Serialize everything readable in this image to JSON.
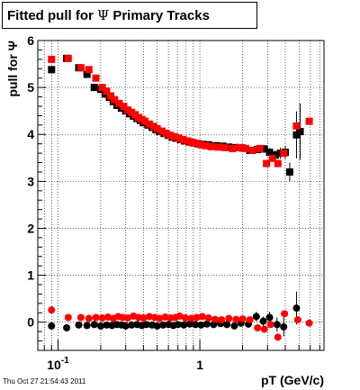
{
  "title": {
    "prefix": "Fitted pull for",
    "symbol": "Ψ",
    "suffix": "Primary Tracks"
  },
  "timestamp": "Thu Oct 27 21:54:43 2011",
  "chart_data": {
    "type": "scatter",
    "title": "Fitted pull for Ψ Primary Tracks",
    "xlabel": "pT (GeV/c)",
    "ylabel": "pull for Ψ",
    "xscale": "log",
    "xlim": [
      0.072,
      7.5
    ],
    "ylim": [
      -0.6,
      6
    ],
    "xticks": [
      {
        "v": 0.1,
        "label": "10",
        "sup": "-1"
      },
      {
        "v": 1,
        "label": "1",
        "sup": ""
      }
    ],
    "yticks": [
      0,
      1,
      2,
      3,
      4,
      5,
      6
    ],
    "grid": true,
    "series": [
      {
        "color": "#000000",
        "marker": "square",
        "x": [
          0.09,
          0.115,
          0.14,
          0.16,
          0.18,
          0.2,
          0.215,
          0.23,
          0.245,
          0.26,
          0.28,
          0.3,
          0.32,
          0.34,
          0.36,
          0.38,
          0.4,
          0.43,
          0.46,
          0.49,
          0.52,
          0.56,
          0.6,
          0.64,
          0.68,
          0.73,
          0.78,
          0.84,
          0.9,
          0.97,
          1.05,
          1.15,
          1.3,
          1.45,
          1.6,
          1.8,
          2.0,
          2.25,
          2.55,
          2.85,
          3.1,
          3.4,
          3.7,
          4.0,
          4.3,
          4.8,
          5.1
        ],
        "y": [
          5.38,
          5.62,
          5.42,
          5.28,
          5.0,
          4.96,
          4.86,
          4.79,
          4.7,
          4.62,
          4.56,
          4.5,
          4.44,
          4.39,
          4.34,
          4.3,
          4.25,
          4.2,
          4.15,
          4.1,
          4.06,
          4.02,
          3.98,
          3.94,
          3.92,
          3.89,
          3.86,
          3.84,
          3.82,
          3.8,
          3.79,
          3.78,
          3.76,
          3.75,
          3.73,
          3.72,
          3.71,
          3.66,
          3.68,
          3.69,
          3.62,
          3.56,
          3.6,
          3.62,
          3.2,
          3.99,
          4.06
        ],
        "yerr": [
          0.02,
          0.03,
          0.03,
          0.02,
          0.02,
          0.02,
          0.02,
          0.02,
          0.02,
          0.02,
          0.02,
          0.02,
          0.02,
          0.02,
          0.02,
          0.02,
          0.02,
          0.02,
          0.02,
          0.02,
          0.02,
          0.02,
          0.02,
          0.02,
          0.02,
          0.02,
          0.03,
          0.03,
          0.03,
          0.03,
          0.03,
          0.03,
          0.04,
          0.04,
          0.04,
          0.05,
          0.05,
          0.06,
          0.07,
          0.08,
          0.09,
          0.1,
          0.12,
          0.14,
          0.2,
          0.5,
          0.6
        ]
      },
      {
        "color": "#ff0000",
        "marker": "square",
        "x": [
          0.09,
          0.118,
          0.145,
          0.165,
          0.185,
          0.205,
          0.22,
          0.235,
          0.25,
          0.27,
          0.29,
          0.31,
          0.33,
          0.35,
          0.37,
          0.39,
          0.41,
          0.44,
          0.47,
          0.5,
          0.54,
          0.58,
          0.62,
          0.66,
          0.71,
          0.76,
          0.82,
          0.88,
          0.95,
          1.02,
          1.1,
          1.2,
          1.35,
          1.5,
          1.7,
          1.9,
          2.1,
          2.35,
          2.65,
          2.95,
          3.25,
          3.55,
          3.9,
          4.8,
          5.9
        ],
        "y": [
          5.6,
          5.62,
          5.42,
          5.38,
          5.2,
          5.0,
          4.92,
          4.82,
          4.74,
          4.66,
          4.6,
          4.52,
          4.47,
          4.42,
          4.36,
          4.32,
          4.28,
          4.22,
          4.17,
          4.12,
          4.07,
          4.02,
          3.98,
          3.95,
          3.92,
          3.89,
          3.86,
          3.83,
          3.81,
          3.78,
          3.76,
          3.74,
          3.73,
          3.72,
          3.7,
          3.72,
          3.7,
          3.66,
          3.7,
          3.38,
          3.49,
          3.38,
          3.6,
          4.18,
          4.28
        ]
      },
      {
        "color": "#000000",
        "marker": "circle",
        "x": [
          0.09,
          0.115,
          0.14,
          0.16,
          0.18,
          0.2,
          0.22,
          0.24,
          0.26,
          0.28,
          0.3,
          0.33,
          0.36,
          0.39,
          0.42,
          0.46,
          0.5,
          0.55,
          0.6,
          0.65,
          0.7,
          0.77,
          0.85,
          0.93,
          1.02,
          1.12,
          1.25,
          1.4,
          1.55,
          1.75,
          1.95,
          2.2,
          2.5,
          2.8,
          3.1,
          3.5,
          3.9,
          4.8
        ],
        "y": [
          -0.08,
          -0.12,
          -0.06,
          -0.07,
          -0.05,
          -0.08,
          -0.06,
          -0.07,
          -0.05,
          -0.06,
          -0.08,
          -0.06,
          -0.05,
          -0.07,
          -0.05,
          -0.06,
          -0.08,
          -0.06,
          -0.05,
          -0.07,
          -0.05,
          -0.06,
          -0.04,
          -0.05,
          -0.06,
          -0.04,
          -0.05,
          -0.03,
          -0.05,
          -0.08,
          -0.02,
          -0.04,
          0.12,
          0.02,
          0.1,
          -0.05,
          -0.1,
          0.3
        ],
        "yerr": [
          0.04,
          0.04,
          0.03,
          0.03,
          0.03,
          0.03,
          0.03,
          0.03,
          0.03,
          0.03,
          0.03,
          0.03,
          0.03,
          0.03,
          0.03,
          0.03,
          0.03,
          0.03,
          0.03,
          0.03,
          0.03,
          0.03,
          0.04,
          0.04,
          0.04,
          0.04,
          0.05,
          0.05,
          0.05,
          0.06,
          0.07,
          0.08,
          0.1,
          0.1,
          0.12,
          0.15,
          0.2,
          0.35
        ]
      },
      {
        "color": "#ff0000",
        "marker": "circle",
        "x": [
          0.09,
          0.118,
          0.145,
          0.165,
          0.185,
          0.205,
          0.225,
          0.245,
          0.265,
          0.285,
          0.31,
          0.34,
          0.37,
          0.4,
          0.44,
          0.48,
          0.52,
          0.57,
          0.62,
          0.67,
          0.72,
          0.79,
          0.87,
          0.95,
          1.04,
          1.15,
          1.28,
          1.42,
          1.6,
          1.8,
          2.0,
          2.25,
          2.55,
          2.85,
          3.15,
          3.55,
          3.95,
          4.9,
          5.9
        ],
        "y": [
          0.26,
          0.1,
          0.1,
          0.08,
          0.1,
          0.09,
          0.11,
          0.08,
          0.12,
          0.1,
          0.09,
          0.13,
          0.1,
          0.09,
          0.12,
          0.1,
          0.08,
          0.11,
          0.09,
          0.1,
          0.13,
          0.09,
          0.08,
          0.1,
          0.12,
          0.09,
          0.06,
          0.05,
          0.08,
          0.06,
          0.07,
          0.05,
          -0.12,
          -0.15,
          -0.05,
          -0.32,
          0.18,
          0.05,
          -0.02
        ]
      }
    ]
  }
}
